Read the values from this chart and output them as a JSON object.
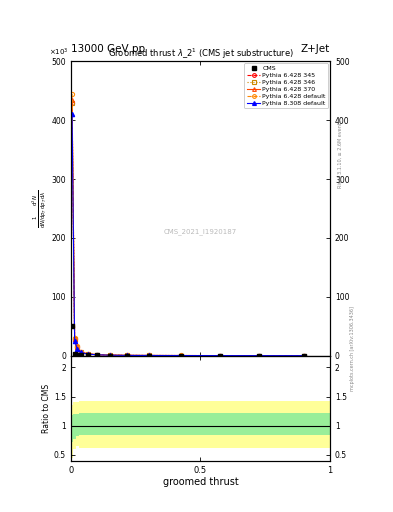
{
  "title": "13000 GeV pp",
  "top_right_label": "Z+Jet",
  "plot_title": "Groomed thrust $\\lambda$_2$^1$ (CMS jet substructure)",
  "xlabel": "groomed thrust",
  "ylabel_main": "mathrm d$^2$N / mathrm d p$_T$ mathrm d lambda",
  "ylabel_ratio": "Ratio to CMS",
  "watermark": "CMS_2021_I1920187",
  "rivet_label": "Rivet 3.1.10, ≥ 2.6M events",
  "mcplots_label": "mcplots.cern.ch [arXiv:1306.3436]",
  "ylim_main_raw": [
    0,
    500
  ],
  "ylim_ratio": [
    0.4,
    2.2
  ],
  "xlim": [
    0,
    1
  ],
  "cms_color": "#000000",
  "p6_345_color": "#ff0000",
  "p6_346_color": "#cc8800",
  "p6_370_color": "#ff4400",
  "p6_default_color": "#ff8800",
  "p8_default_color": "#0000ff",
  "green_band_lower": 0.85,
  "green_band_upper": 1.22,
  "yellow_band_lower": 0.62,
  "yellow_band_upper": 1.42,
  "bin_edges": [
    0.0,
    0.01,
    0.02,
    0.03,
    0.05,
    0.08,
    0.12,
    0.18,
    0.25,
    0.35,
    0.5,
    0.65,
    0.8,
    1.0
  ],
  "cms_vals": [
    50,
    3.5,
    1.8,
    1.2,
    0.8,
    0.5,
    0.3,
    0.2,
    0.15,
    0.1,
    0.08,
    0.05,
    0.04
  ],
  "p6_345_vals": [
    430,
    28,
    14,
    6,
    3,
    1.8,
    1.0,
    0.6,
    0.4,
    0.3,
    0.2,
    0.15,
    0.1
  ],
  "p6_346_vals": [
    430,
    28,
    14,
    6,
    3,
    1.8,
    1.0,
    0.6,
    0.4,
    0.3,
    0.2,
    0.15,
    0.1
  ],
  "p6_370_vals": [
    435,
    29,
    15,
    6.5,
    3.2,
    1.9,
    1.1,
    0.65,
    0.42,
    0.32,
    0.22,
    0.16,
    0.11
  ],
  "p6_def_vals": [
    445,
    30,
    16,
    7,
    3.5,
    2.0,
    1.2,
    0.7,
    0.45,
    0.35,
    0.25,
    0.18,
    0.12
  ],
  "p8_def_vals": [
    410,
    25,
    12,
    5.5,
    2.8,
    1.6,
    0.9,
    0.55,
    0.38,
    0.28,
    0.18,
    0.13,
    0.09
  ]
}
